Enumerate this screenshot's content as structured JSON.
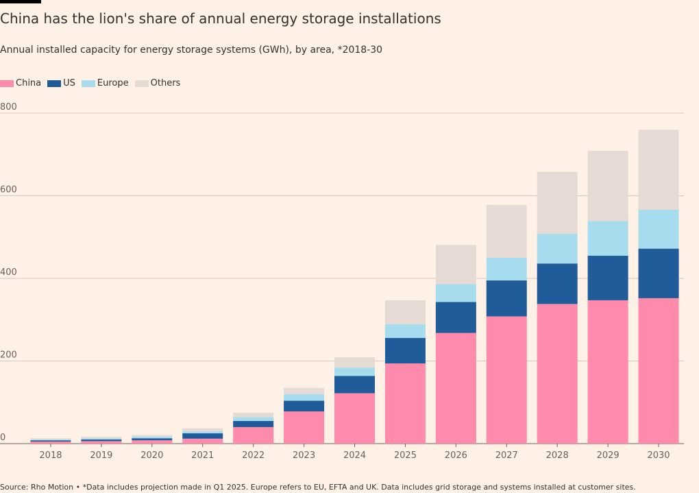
{
  "header": {
    "title": "China has the lion's share of annual energy storage installations",
    "subtitle": "Annual installed capacity for energy storage systems (GWh), by area, *2018-30"
  },
  "legend": {
    "items": [
      {
        "label": "China",
        "color": "#ff8bac"
      },
      {
        "label": "US",
        "color": "#1f5c99"
      },
      {
        "label": "Europe",
        "color": "#a6dcee"
      },
      {
        "label": "Others",
        "color": "#e6dbd4"
      }
    ]
  },
  "footer": {
    "source": "Source: Rho Motion • *Data includes projection made in Q1 2025. Europe refers to EU, EFTA and UK. Data includes grid storage and systems installed at customer sites."
  },
  "chart_data": {
    "type": "bar",
    "stacked": true,
    "categories": [
      "2018",
      "2019",
      "2020",
      "2021",
      "2022",
      "2023",
      "2024",
      "2025",
      "2026",
      "2027",
      "2028",
      "2029",
      "2030"
    ],
    "series": [
      {
        "name": "China",
        "color": "#ff8bac",
        "values": [
          5,
          6,
          8,
          12,
          40,
          78,
          122,
          194,
          268,
          308,
          338,
          347,
          352
        ]
      },
      {
        "name": "US",
        "color": "#1f5c99",
        "values": [
          3,
          4,
          5,
          13,
          15,
          26,
          42,
          62,
          75,
          87,
          98,
          108,
          120
        ]
      },
      {
        "name": "Europe",
        "color": "#a6dcee",
        "values": [
          2,
          3,
          4,
          5,
          9,
          16,
          20,
          33,
          43,
          55,
          72,
          84,
          94
        ]
      },
      {
        "name": "Others",
        "color": "#e6dbd4",
        "values": [
          3,
          4,
          4,
          7,
          11,
          15,
          25,
          58,
          95,
          128,
          150,
          170,
          194
        ]
      }
    ],
    "ylim": [
      0,
      800
    ],
    "yticks": [
      0,
      200,
      400,
      600,
      800
    ],
    "grid": true,
    "legend_position": "top-left"
  }
}
